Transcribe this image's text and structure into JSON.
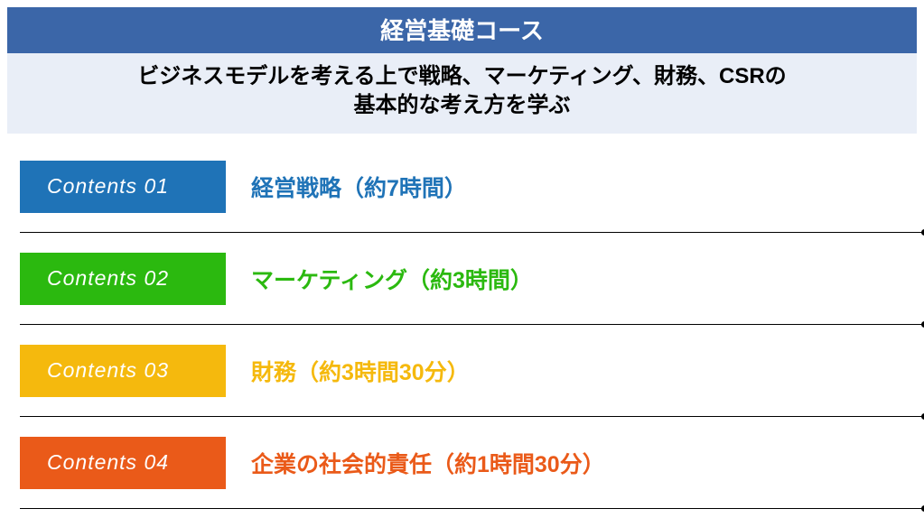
{
  "header": {
    "title": "経営基礎コース",
    "title_fontsize": 26,
    "band_color": "#3b66a8",
    "sub_bg": "#e9eef7",
    "sub_line1": "ビジネスモデルを考える上で戦略、マーケティング、財務、CSRの",
    "sub_line2": "基本的な考え方を学ぶ",
    "sub_fontsize": 24
  },
  "rows": [
    {
      "tab_label": "Contents 01",
      "tab_color": "#1f73b7",
      "topic": "経営戦略（約7時間）",
      "topic_color": "#1f73b7"
    },
    {
      "tab_label": "Contents 02",
      "tab_color": "#2bb90f",
      "topic": "マーケティング（約3時間）",
      "topic_color": "#2bb90f"
    },
    {
      "tab_label": "Contents 03",
      "tab_color": "#f5b90d",
      "topic": "財務（約3時間30分）",
      "topic_color": "#f5b90d"
    },
    {
      "tab_label": "Contents 04",
      "tab_color": "#ea5a19",
      "topic": "企業の社会的責任（約1時間30分）",
      "topic_color": "#ea5a19"
    }
  ],
  "style": {
    "tab_fontsize": 23,
    "topic_fontsize": 25
  }
}
